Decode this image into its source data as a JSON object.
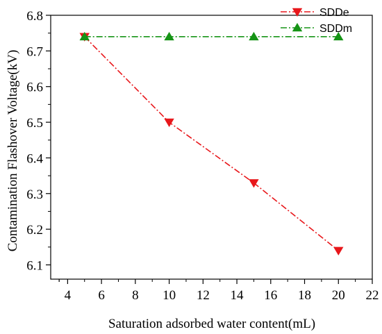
{
  "chart_data": {
    "type": "line",
    "xlabel": "Saturation adsorbed water content(mL)",
    "ylabel": "Contamination Flashover Voltage(kV)",
    "xlim": [
      3,
      22
    ],
    "ylim": [
      6.06,
      6.8
    ],
    "x_ticks": [
      4,
      6,
      8,
      10,
      12,
      14,
      16,
      18,
      20,
      22
    ],
    "y_ticks": [
      6.1,
      6.2,
      6.3,
      6.4,
      6.5,
      6.6,
      6.7,
      6.8
    ],
    "grid": false,
    "legend_position": "top-right",
    "series": [
      {
        "name": "SDDe",
        "x": [
          5,
          10,
          15,
          20
        ],
        "y": [
          6.74,
          6.5,
          6.33,
          6.14
        ],
        "color": "#e8171b",
        "marker": "triangle-down",
        "line_style": "dash-dot"
      },
      {
        "name": "SDDm",
        "x": [
          5,
          10,
          15,
          20
        ],
        "y": [
          6.74,
          6.74,
          6.74,
          6.74
        ],
        "color": "#169416",
        "marker": "triangle-up",
        "line_style": "dash-dot"
      }
    ]
  }
}
